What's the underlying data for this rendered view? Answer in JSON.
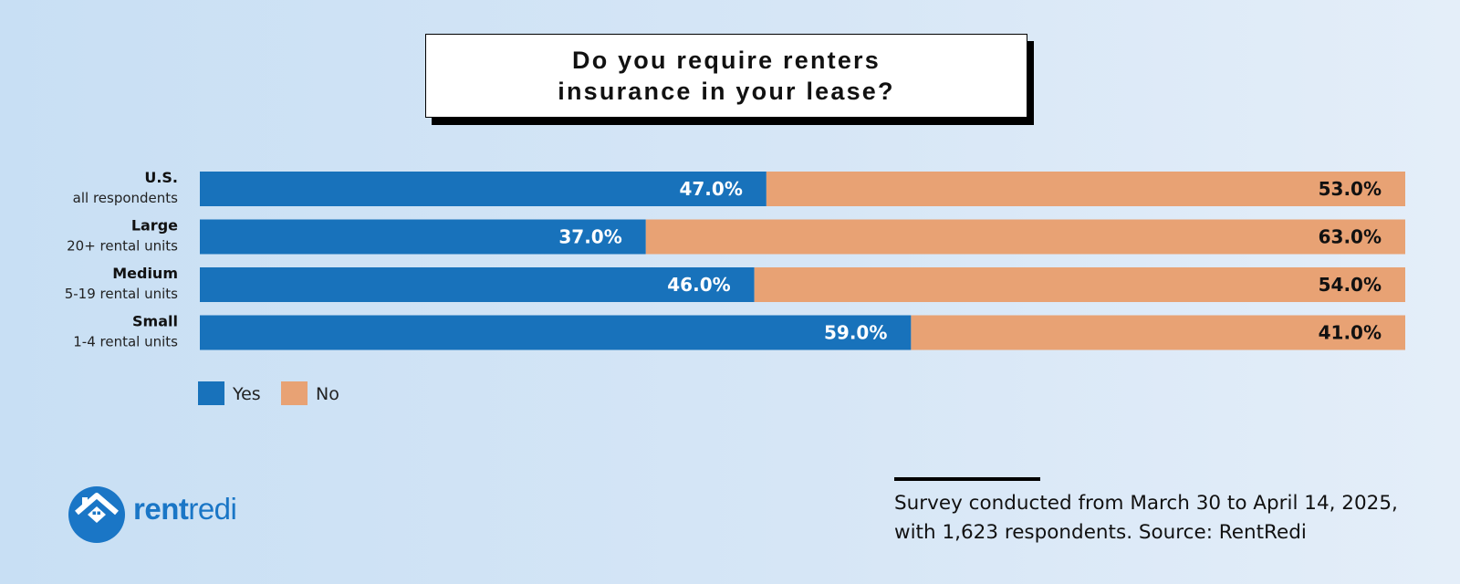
{
  "title_lines": [
    "Do you require renters",
    "insurance in your lease?"
  ],
  "chart_data": {
    "type": "bar",
    "orientation": "horizontal",
    "stacked": true,
    "title": "Do you require renters insurance in your lease?",
    "categories": [
      {
        "name": "U.S.",
        "sub": "all respondents"
      },
      {
        "name": "Large",
        "sub": "20+ rental units"
      },
      {
        "name": "Medium",
        "sub": "5-19 rental units"
      },
      {
        "name": "Small",
        "sub": "1-4 rental units"
      }
    ],
    "series": [
      {
        "name": "Yes",
        "color": "#1872bb",
        "values": [
          47.0,
          37.0,
          46.0,
          59.0
        ],
        "labels": [
          "47.0%",
          "37.0%",
          "46.0%",
          "59.0%"
        ]
      },
      {
        "name": "No",
        "color": "#e8a274",
        "values": [
          53.0,
          63.0,
          54.0,
          41.0
        ],
        "labels": [
          "53.0%",
          "63.0%",
          "54.0%",
          "41.0%"
        ]
      }
    ],
    "xlim": [
      0,
      100
    ],
    "legend_position": "bottom-left",
    "grid": false
  },
  "logo": {
    "part1": "rent",
    "part2": "redi",
    "color": "#1a76c6"
  },
  "source": {
    "line1": "Survey conducted from March 30 to April 14, 2025,",
    "line2": "with 1,623 respondents. Source: RentRedi"
  }
}
